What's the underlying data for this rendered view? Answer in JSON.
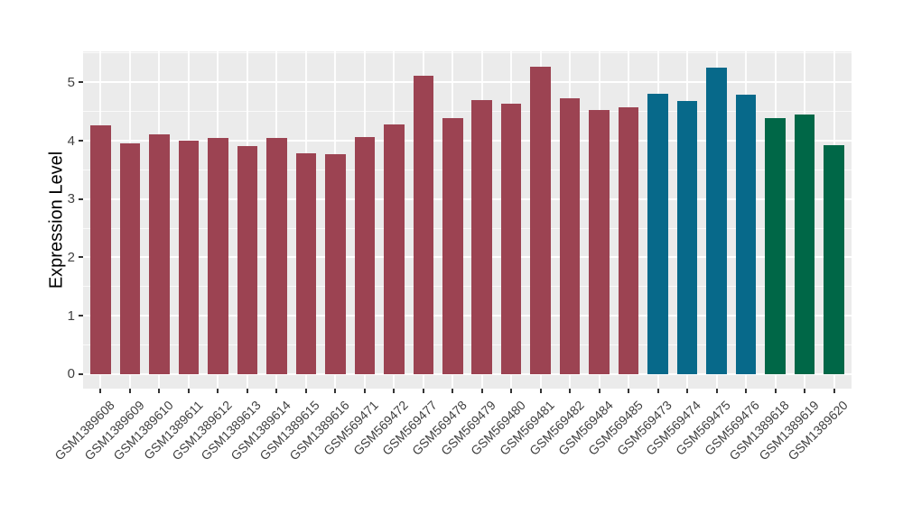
{
  "chart_data": {
    "type": "bar",
    "title": "",
    "xlabel": "",
    "ylabel": "Expression Level",
    "categories": [
      "GSM1389608",
      "GSM1389609",
      "GSM1389610",
      "GSM1389611",
      "GSM1389612",
      "GSM1389613",
      "GSM1389614",
      "GSM1389615",
      "GSM1389616",
      "GSM569471",
      "GSM569472",
      "GSM569477",
      "GSM569478",
      "GSM569479",
      "GSM569480",
      "GSM569481",
      "GSM569482",
      "GSM569484",
      "GSM569485",
      "GSM569473",
      "GSM569474",
      "GSM569475",
      "GSM569476",
      "GSM1389618",
      "GSM1389619",
      "GSM1389620"
    ],
    "values": [
      4.26,
      3.95,
      4.11,
      4.0,
      4.05,
      3.9,
      4.05,
      3.79,
      3.77,
      4.06,
      4.28,
      5.12,
      4.39,
      4.69,
      4.63,
      5.27,
      4.73,
      4.52,
      4.57,
      4.8,
      4.68,
      5.25,
      4.79,
      4.39,
      4.45,
      3.93
    ],
    "groups": [
      {
        "name": "group-1",
        "color": "#9C4352"
      },
      {
        "name": "group-2",
        "color": "#07698A"
      },
      {
        "name": "group-3",
        "color": "#006747"
      }
    ],
    "bar_group_index": [
      0,
      0,
      0,
      0,
      0,
      0,
      0,
      0,
      0,
      0,
      0,
      0,
      0,
      0,
      0,
      0,
      0,
      0,
      0,
      1,
      1,
      1,
      1,
      2,
      2,
      2
    ],
    "yticks": [
      0,
      1,
      2,
      3,
      4,
      5
    ],
    "ylim": [
      0,
      5.3
    ],
    "ylim_display": [
      -0.25,
      5.53
    ],
    "grid": true,
    "legend": "none",
    "panel_bg": "#EBEBEB",
    "grid_major_color": "#FFFFFF",
    "grid_minor_color": "#FFFFFF",
    "axis_text_color": "#404040",
    "axis_title_color": "#000000",
    "tick_mark_color": "#333333"
  }
}
